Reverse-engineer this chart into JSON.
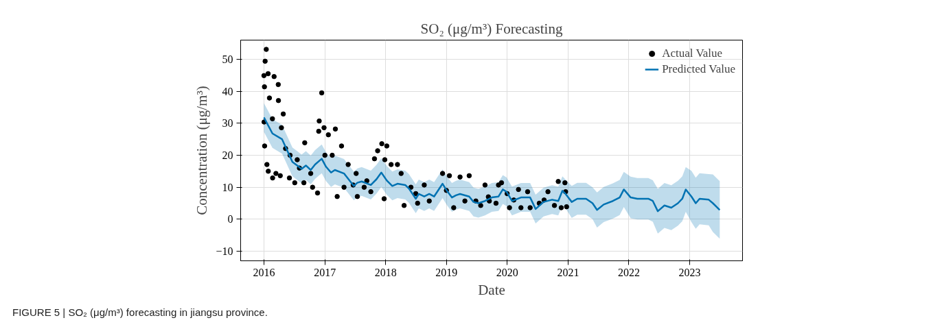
{
  "chart_data": {
    "type": "line",
    "title": "SO₂ (μg/m³) Forecasting",
    "xlabel": "Date",
    "ylabel": "Concentration (μg/m³)",
    "xlim": [
      "2015-08-14",
      "2023-11-15"
    ],
    "ylim": [
      -13,
      56
    ],
    "xticks": [
      {
        "value": "2016-01-01",
        "label": "2016"
      },
      {
        "value": "2017-01-01",
        "label": "2017"
      },
      {
        "value": "2018-01-01",
        "label": "2018"
      },
      {
        "value": "2019-01-01",
        "label": "2019"
      },
      {
        "value": "2020-01-01",
        "label": "2020"
      },
      {
        "value": "2021-01-01",
        "label": "2021"
      },
      {
        "value": "2022-01-01",
        "label": "2022"
      },
      {
        "value": "2023-01-01",
        "label": "2023"
      }
    ],
    "yticks": [
      {
        "value": -10,
        "label": "−10"
      },
      0,
      10,
      20,
      30,
      40,
      50
    ],
    "grid": true,
    "legend": "top right",
    "annotations": [
      "FIGURE 5 | SO₂ (μg/m³) forecasting in jiangsu province."
    ],
    "series": [
      {
        "type": "scatter",
        "name": "Actual Value",
        "color": "#000000",
        "marker": "circle",
        "x": [
          "2016-01-15",
          "2016-01-08",
          "2016-01-01",
          "2016-01-02",
          "2016-01-04",
          "2016-01-05",
          "2016-01-26",
          "2016-03-02",
          "2016-03-27",
          "2016-02-03",
          "2016-03-28",
          "2016-04-26",
          "2016-02-21",
          "2016-04-15",
          "2016-01-19",
          "2016-01-27",
          "2016-02-22",
          "2016-03-13",
          "2016-04-08",
          "2016-05-10",
          "2016-06-06",
          "2016-06-02",
          "2016-07-04",
          "2016-07-19",
          "2016-09-02",
          "2016-08-28",
          "2016-10-08",
          "2016-10-19",
          "2016-11-18",
          "2016-11-25",
          "2016-11-28",
          "2016-12-13",
          "2016-12-27",
          "2017-01-22",
          "2017-02-14",
          "2017-03-05",
          "2017-03-16",
          "2017-04-11",
          "2017-04-26",
          "2017-05-21",
          "2017-06-20",
          "2017-07-08",
          "2017-07-15",
          "2017-08-25",
          "2017-10-04",
          "2017-10-26",
          "2017-11-14",
          "2017-12-09",
          "2018-01-08",
          "2017-12-27",
          "2017-12-23",
          "2018-02-03",
          "2018-03-13",
          "2018-04-04",
          "2018-04-22",
          "2018-06-02",
          "2018-07-12",
          "2018-08-21",
          "2018-09-20",
          "2018-12-09",
          "2019-01-19",
          "2019-02-14",
          "2019-03-24",
          "2019-05-18",
          "2019-04-22",
          "2019-06-27",
          "2019-08-21",
          "2019-07-26",
          "2019-09-16",
          "2019-11-10",
          "2019-11-28",
          "2019-10-26",
          "2020-01-15",
          "2020-03-09",
          "2020-03-24",
          "2020-05-18",
          "2020-05-03",
          "2020-07-12",
          "2020-09-02",
          "2020-10-11",
          "2020-11-03",
          "2020-11-21",
          "2020-12-13",
          "2020-12-23",
          "2020-12-17",
          "2016-08-01",
          "2017-01-01",
          "2017-09-10",
          "2018-07-01",
          "2019-01-01",
          "2019-09-10",
          "2020-02-10",
          "2020-08-10",
          "2020-01-01"
        ],
        "values": [
          53.1,
          49.4,
          44.9,
          30.4,
          41.4,
          22.9,
          45.5,
          44.6,
          42.1,
          37.9,
          37.1,
          32.9,
          31.4,
          28.6,
          17.1,
          15.0,
          12.9,
          14.3,
          13.6,
          22.1,
          20.0,
          12.9,
          11.4,
          18.6,
          23.9,
          11.4,
          14.3,
          10.0,
          8.2,
          27.5,
          30.7,
          39.5,
          28.6,
          26.4,
          20.0,
          28.2,
          7.1,
          22.9,
          10.0,
          17.1,
          10.7,
          14.3,
          7.1,
          10.0,
          8.6,
          18.9,
          21.4,
          23.6,
          22.9,
          18.6,
          6.4,
          17.1,
          17.1,
          14.3,
          4.3,
          10.0,
          5.0,
          10.7,
          5.7,
          14.3,
          13.6,
          3.6,
          13.2,
          13.6,
          5.7,
          5.7,
          10.7,
          4.3,
          5.7,
          10.7,
          11.4,
          5.0,
          3.6,
          9.3,
          3.6,
          3.6,
          8.6,
          5.0,
          8.6,
          4.3,
          11.8,
          3.6,
          11.4,
          3.9,
          8.6,
          16.0,
          20.0,
          12.0,
          8.0,
          9.0,
          7.0,
          6.0,
          6.0,
          8.0
        ]
      },
      {
        "name": "Predicted Value",
        "color": "#0072b2",
        "x": [
          "2016-01-01",
          "2016-02-21",
          "2016-04-19",
          "2016-06-20",
          "2016-07-19",
          "2016-08-14",
          "2016-09-09",
          "2016-10-08",
          "2016-11-03",
          "2016-12-13",
          "2017-01-08",
          "2017-02-07",
          "2017-03-02",
          "2017-04-26",
          "2017-06-24",
          "2017-07-15",
          "2017-08-10",
          "2017-10-04",
          "2017-11-07",
          "2017-12-06",
          "2018-01-08",
          "2018-02-10",
          "2018-03-13",
          "2018-04-29",
          "2018-05-21",
          "2018-07-01",
          "2018-07-19",
          "2018-08-21",
          "2018-09-20",
          "2018-10-19",
          "2018-12-09",
          "2019-01-04",
          "2019-02-03",
          "2019-02-28",
          "2019-03-24",
          "2019-05-18",
          "2019-06-13",
          "2019-07-12",
          "2019-08-21",
          "2019-10-01",
          "2019-11-10",
          "2019-12-06",
          "2019-12-28",
          "2020-01-30",
          "2020-03-24",
          "2020-05-18",
          "2020-06-20",
          "2020-08-07",
          "2020-09-27",
          "2020-11-03",
          "2020-11-28",
          "2020-12-17",
          "2021-01-23",
          "2021-02-25",
          "2021-04-19",
          "2021-05-28",
          "2021-06-24",
          "2021-08-03",
          "2021-09-27",
          "2021-11-07",
          "2021-12-02",
          "2022-01-12",
          "2022-02-21",
          "2022-04-28",
          "2022-05-25",
          "2022-06-24",
          "2022-08-03",
          "2022-09-13",
          "2022-10-23",
          "2022-11-18",
          "2022-12-09",
          "2023-01-12",
          "2023-02-07",
          "2023-03-02",
          "2023-04-26",
          "2023-05-21",
          "2023-07-01"
        ],
        "values": [
          31.8,
          26.8,
          25.0,
          17.9,
          16.8,
          15.7,
          16.8,
          15.4,
          17.1,
          18.9,
          16.4,
          14.6,
          15.4,
          14.3,
          10.4,
          11.4,
          11.8,
          10.7,
          12.5,
          14.6,
          12.1,
          10.4,
          11.1,
          10.7,
          9.6,
          6.4,
          7.9,
          7.1,
          7.9,
          7.1,
          11.1,
          8.9,
          6.8,
          7.5,
          7.9,
          7.1,
          5.4,
          5.0,
          5.7,
          6.8,
          7.1,
          9.3,
          8.6,
          5.7,
          6.8,
          6.8,
          3.2,
          5.4,
          6.1,
          5.7,
          8.9,
          7.9,
          5.4,
          6.4,
          6.4,
          5.0,
          2.9,
          4.6,
          5.7,
          6.8,
          9.3,
          6.8,
          6.4,
          6.4,
          5.7,
          2.5,
          4.3,
          3.6,
          5.0,
          6.4,
          9.3,
          7.1,
          5.0,
          6.4,
          6.1,
          5.0,
          2.9
        ],
        "lower": [
          27.3,
          22.3,
          20.5,
          13.4,
          12.3,
          11.2,
          12.3,
          10.9,
          12.6,
          14.4,
          11.9,
          10.1,
          10.9,
          9.8,
          5.9,
          6.9,
          7.3,
          6.2,
          8.0,
          10.1,
          7.6,
          5.9,
          6.6,
          6.2,
          5.1,
          1.9,
          3.4,
          2.6,
          3.4,
          2.6,
          6.6,
          4.4,
          2.3,
          3.0,
          3.4,
          2.6,
          0.9,
          0.5,
          1.2,
          2.3,
          2.6,
          4.8,
          4.1,
          1.2,
          2.3,
          2.3,
          -1.3,
          0.9,
          1.6,
          1.2,
          4.4,
          3.4,
          0.4,
          1.4,
          1.4,
          0.0,
          -2.6,
          -0.9,
          0.2,
          1.3,
          3.8,
          0.3,
          -0.1,
          -0.1,
          -0.8,
          -4.5,
          -2.7,
          -3.4,
          -2.0,
          -0.6,
          2.3,
          -0.9,
          -3.0,
          -1.6,
          -1.9,
          -4.0,
          -6.1
        ],
        "upper": [
          36.3,
          31.3,
          29.5,
          22.4,
          21.3,
          20.2,
          21.3,
          19.9,
          21.6,
          23.4,
          20.9,
          19.1,
          19.9,
          18.8,
          14.9,
          15.9,
          16.3,
          15.2,
          17.0,
          19.1,
          16.6,
          14.9,
          15.6,
          15.2,
          14.1,
          10.9,
          12.4,
          11.6,
          12.4,
          11.6,
          15.6,
          13.4,
          11.3,
          12.0,
          12.4,
          11.6,
          9.9,
          9.5,
          10.2,
          11.3,
          11.6,
          13.8,
          13.1,
          10.2,
          11.3,
          11.3,
          7.7,
          9.9,
          10.6,
          10.2,
          13.4,
          12.4,
          10.4,
          11.4,
          11.4,
          10.0,
          8.4,
          10.1,
          11.2,
          12.3,
          14.8,
          13.3,
          12.9,
          12.9,
          12.2,
          9.5,
          11.3,
          10.6,
          12.0,
          13.4,
          16.3,
          15.1,
          13.0,
          14.4,
          14.1,
          14.0,
          11.9
        ]
      }
    ]
  }
}
